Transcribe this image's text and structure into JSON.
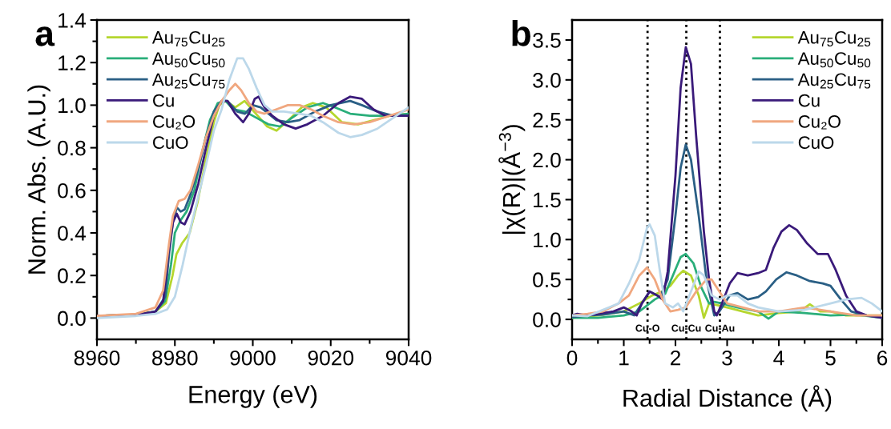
{
  "chart_data": [
    {
      "type": "line",
      "xlabel": "Energy (eV)",
      "ylabel": "Norm. Abs. (A.U.)",
      "annotations": [
        "a"
      ],
      "legend": "top left",
      "grid": false,
      "xlim": [
        8960,
        9040
      ],
      "xticks": [
        8960,
        {
          "value": 8970,
          "label": null
        },
        8980,
        {
          "value": 8990,
          "label": null
        },
        9000,
        {
          "value": 9010,
          "label": null
        },
        9020,
        {
          "value": 9030,
          "label": null
        },
        9040
      ],
      "ylim": [
        -0.1,
        1.4
      ],
      "yticks": [
        {
          "value": 0.0,
          "label": "0.0"
        },
        {
          "value": 0.1,
          "label": null
        },
        0.2,
        {
          "value": 0.3,
          "label": null
        },
        0.4,
        {
          "value": 0.5,
          "label": null
        },
        0.6,
        {
          "value": 0.7,
          "label": null
        },
        0.8,
        {
          "value": 0.9,
          "label": null
        },
        {
          "value": 1.0,
          "label": "1.0"
        },
        {
          "value": 1.1,
          "label": null
        },
        1.2,
        {
          "value": 1.3,
          "label": null
        },
        1.4
      ],
      "series": [
        {
          "name": "Au$_{75}$Cu$_{25}$",
          "color": "#b5d62e",
          "x": [
            8960,
            8969.5,
            8975,
            8977.7,
            8979.4,
            8980.4,
            8981.8,
            8983.8,
            8985.9,
            8988,
            8990,
            8991.4,
            8993.1,
            8995.5,
            8997.9,
            9000.3,
            9003.7,
            9006.1,
            9009.2,
            9012.6,
            9015.4,
            9018.8,
            9022.9,
            9027,
            9031.1,
            9035.2,
            9040
          ],
          "values": [
            0.01,
            0.015,
            0.03,
            0.07,
            0.2,
            0.3,
            0.35,
            0.4,
            0.55,
            0.75,
            0.92,
            1.0,
            1.02,
            0.99,
            1.02,
            0.97,
            0.9,
            0.88,
            0.93,
            0.99,
            1.01,
            0.99,
            0.92,
            0.91,
            0.93,
            0.95,
            0.96
          ]
        },
        {
          "name": "Au$_{50}$Cu$_{50}$",
          "color": "#2aae7a",
          "x": [
            8960,
            8970,
            8975,
            8977.5,
            8979,
            8980,
            8981.5,
            8983,
            8985,
            8987,
            8989,
            8991,
            8993,
            8995,
            8998,
            9001,
            9004,
            9007,
            9010,
            9014,
            9018,
            9021,
            9025,
            9030,
            9035,
            9040
          ],
          "values": [
            0.01,
            0.015,
            0.03,
            0.08,
            0.25,
            0.4,
            0.46,
            0.5,
            0.6,
            0.78,
            0.93,
            1.01,
            1.02,
            0.98,
            0.97,
            0.94,
            0.91,
            0.9,
            0.94,
            0.99,
            1.01,
            0.99,
            0.96,
            0.95,
            0.95,
            0.96
          ]
        },
        {
          "name": "Au$_{25}$Cu$_{75}$",
          "color": "#2a5f85",
          "x": [
            8960,
            8970,
            8975,
            8977.5,
            8978.5,
            8979.5,
            8980.5,
            8981.5,
            8982.5,
            8984,
            8986,
            8988,
            8990,
            8992,
            8993.5,
            8996,
            8998,
            9000,
            9002,
            9004,
            9006,
            9009,
            9012,
            9016,
            9020,
            9025,
            9028,
            9032,
            9036,
            9040
          ],
          "values": [
            0.01,
            0.015,
            0.03,
            0.1,
            0.3,
            0.45,
            0.52,
            0.5,
            0.51,
            0.58,
            0.7,
            0.85,
            0.97,
            1.02,
            1.02,
            0.97,
            0.96,
            1.0,
            0.99,
            0.96,
            0.93,
            0.92,
            0.93,
            0.97,
            1.0,
            1.02,
            1.0,
            0.97,
            0.95,
            0.95
          ]
        },
        {
          "name": "Cu",
          "color": "#3a1a7a",
          "x": [
            8960,
            8970,
            8975,
            8977,
            8978.3,
            8979.5,
            8980.5,
            8981.5,
            8982.5,
            8984,
            8986,
            8988,
            8990,
            8992,
            8993.5,
            8995.5,
            8997.5,
            8999,
            9000.5,
            9001.5,
            9003,
            9005,
            9008,
            9011,
            9014,
            9018,
            9022,
            9025,
            9028,
            9031,
            9034,
            9037,
            9040
          ],
          "values": [
            0.01,
            0.015,
            0.03,
            0.08,
            0.3,
            0.45,
            0.49,
            0.45,
            0.44,
            0.5,
            0.63,
            0.8,
            0.95,
            1.02,
            1.02,
            0.96,
            0.92,
            0.96,
            1.03,
            1.04,
            0.99,
            0.95,
            0.91,
            0.89,
            0.91,
            0.95,
            1.01,
            1.04,
            1.03,
            0.98,
            0.95,
            0.95,
            0.95
          ]
        },
        {
          "name": "Cu₂O",
          "color": "#f0a77f",
          "x": [
            8960,
            8970,
            8975,
            8977,
            8978.5,
            8979.5,
            8981,
            8982.5,
            8984,
            8986,
            8988,
            8990,
            8992,
            8994,
            8995.5,
            8997,
            8999,
            9001,
            9003,
            9006,
            9009,
            9012,
            9015,
            9018,
            9022,
            9026,
            9030,
            9035,
            9040
          ],
          "values": [
            0.01,
            0.02,
            0.05,
            0.13,
            0.35,
            0.48,
            0.55,
            0.56,
            0.6,
            0.72,
            0.85,
            0.95,
            1.02,
            1.07,
            1.1,
            1.07,
            1.01,
            0.97,
            0.96,
            0.98,
            1.0,
            1.0,
            0.98,
            0.95,
            0.92,
            0.91,
            0.92,
            0.95,
            0.98
          ]
        },
        {
          "name": "CuO",
          "color": "#bcd8ea",
          "x": [
            8960,
            8970,
            8975,
            8978,
            8980,
            8982,
            8984,
            8986,
            8988,
            8990,
            8992,
            8994,
            8996,
            8997.5,
            8999,
            9001,
            9003,
            9005,
            9008,
            9012,
            9015,
            9018,
            9022,
            9025,
            9028,
            9032,
            9036,
            9040
          ],
          "values": [
            0.0,
            0.01,
            0.02,
            0.04,
            0.1,
            0.25,
            0.42,
            0.57,
            0.72,
            0.88,
            0.98,
            1.12,
            1.22,
            1.22,
            1.17,
            1.08,
            1.0,
            0.97,
            0.97,
            0.96,
            0.95,
            0.92,
            0.87,
            0.85,
            0.86,
            0.89,
            0.94,
            0.99
          ]
        }
      ]
    },
    {
      "type": "line",
      "xlabel": "Radial Distance (Å)",
      "ylabel": "|χ(R)|(Å$^{−3}$)",
      "annotations": [
        "b"
      ],
      "legend": "top right",
      "grid": false,
      "xlim": [
        0,
        6
      ],
      "xticks": [
        0,
        {
          "value": 0.5,
          "label": null
        },
        1,
        {
          "value": 1.5,
          "label": null
        },
        2,
        {
          "value": 2.5,
          "label": null
        },
        3,
        {
          "value": 3.5,
          "label": null
        },
        4,
        {
          "value": 4.5,
          "label": null
        },
        5,
        {
          "value": 5.5,
          "label": null
        },
        6
      ],
      "ylim": [
        -0.25,
        3.75
      ],
      "yticks": [
        {
          "value": 0.0,
          "label": "0.0"
        },
        {
          "value": 0.25,
          "label": null
        },
        0.5,
        {
          "value": 0.75,
          "label": null
        },
        {
          "value": 1.0,
          "label": "1.0"
        },
        {
          "value": 1.25,
          "label": null
        },
        1.5,
        {
          "value": 1.75,
          "label": null
        },
        {
          "value": 2.0,
          "label": "2.0"
        },
        {
          "value": 2.25,
          "label": null
        },
        2.5,
        {
          "value": 2.75,
          "label": null
        },
        {
          "value": 3.0,
          "label": "3.0"
        },
        {
          "value": 3.25,
          "label": null
        },
        3.5
      ],
      "ref_lines": [
        {
          "axis": "x",
          "value": 1.46,
          "label": "Cu-O",
          "color": "#000000",
          "line_style": "dotted"
        },
        {
          "axis": "x",
          "value": 2.21,
          "label": "Cu-Cu",
          "color": "#000000",
          "line_style": "dotted"
        },
        {
          "axis": "x",
          "value": 2.86,
          "label": "Cu-Au",
          "color": "#000000",
          "line_style": "dotted"
        }
      ],
      "series": [
        {
          "name": "Au$_{75}$Cu$_{25}$",
          "color": "#b5d62e",
          "x": [
            0,
            0.5,
            1.0,
            1.3,
            1.55,
            1.75,
            1.9,
            2.05,
            2.15,
            2.3,
            2.45,
            2.55,
            2.65,
            2.8,
            3.0,
            3.3,
            3.6,
            4.0,
            4.4,
            4.6,
            4.8,
            5.0,
            5.3,
            6.0
          ],
          "values": [
            0.02,
            0.05,
            0.1,
            0.2,
            0.3,
            0.35,
            0.42,
            0.55,
            0.61,
            0.55,
            0.3,
            0.02,
            0.2,
            0.18,
            0.15,
            0.1,
            0.05,
            0.08,
            0.1,
            0.19,
            0.1,
            0.1,
            0.05,
            0.05
          ]
        },
        {
          "name": "Au$_{50}$Cu$_{50}$",
          "color": "#2aae7a",
          "x": [
            0,
            0.5,
            1.0,
            1.3,
            1.6,
            1.8,
            1.95,
            2.1,
            2.2,
            2.35,
            2.5,
            2.65,
            2.75,
            2.9,
            3.2,
            3.6,
            3.8,
            4.0,
            4.5,
            5.0,
            5.5,
            6.0
          ],
          "values": [
            0.02,
            0.02,
            0.05,
            0.1,
            0.25,
            0.32,
            0.55,
            0.78,
            0.82,
            0.7,
            0.4,
            0.2,
            0.22,
            0.2,
            0.15,
            0.1,
            0.01,
            0.1,
            0.08,
            0.05,
            0.06,
            0.02
          ]
        },
        {
          "name": "Au$_{25}$Cu$_{75}$",
          "color": "#2a5f85",
          "x": [
            0,
            0.3,
            0.6,
            1.0,
            1.2,
            1.35,
            1.5,
            1.7,
            1.85,
            2.0,
            2.1,
            2.2,
            2.3,
            2.45,
            2.6,
            2.75,
            2.85,
            3.05,
            3.2,
            3.4,
            3.6,
            3.75,
            3.95,
            4.15,
            4.35,
            4.6,
            4.85,
            5.0,
            5.2,
            5.4,
            5.7,
            6.0
          ],
          "values": [
            0.03,
            0.05,
            0.06,
            0.1,
            0.05,
            0.2,
            0.35,
            0.28,
            0.5,
            1.3,
            1.9,
            2.19,
            2.0,
            1.3,
            0.5,
            0.05,
            0.1,
            0.3,
            0.33,
            0.25,
            0.28,
            0.35,
            0.5,
            0.59,
            0.55,
            0.48,
            0.45,
            0.42,
            0.25,
            0.1,
            0.05,
            0.03
          ]
        },
        {
          "name": "Cu",
          "color": "#3a1a7a",
          "x": [
            0,
            0.1,
            0.3,
            0.6,
            0.8,
            1.0,
            1.15,
            1.25,
            1.35,
            1.5,
            1.65,
            1.75,
            1.85,
            2.0,
            2.1,
            2.2,
            2.3,
            2.4,
            2.55,
            2.65,
            2.75,
            2.8,
            2.9,
            3.05,
            3.2,
            3.4,
            3.6,
            3.75,
            3.9,
            4.05,
            4.2,
            4.35,
            4.55,
            4.75,
            4.95,
            5.1,
            5.3,
            5.5,
            5.7,
            6.0
          ],
          "values": [
            0.05,
            0.07,
            0.05,
            0.08,
            0.1,
            0.15,
            0.1,
            0.05,
            0.2,
            0.35,
            0.3,
            0.25,
            0.6,
            1.8,
            2.9,
            3.41,
            3.2,
            2.3,
            1.1,
            0.5,
            0.1,
            0.05,
            0.2,
            0.45,
            0.58,
            0.55,
            0.58,
            0.62,
            0.9,
            1.1,
            1.18,
            1.12,
            0.95,
            0.82,
            0.82,
            0.62,
            0.3,
            0.1,
            0.05,
            0.02
          ]
        },
        {
          "name": "Cu₂O",
          "color": "#f0a77f",
          "x": [
            0,
            0.3,
            0.6,
            0.9,
            1.1,
            1.3,
            1.45,
            1.6,
            1.75,
            1.9,
            2.05,
            2.2,
            2.4,
            2.6,
            2.7,
            2.85,
            3.0,
            3.3,
            3.6,
            4.0,
            4.5,
            5.0,
            5.5,
            6.0
          ],
          "values": [
            0.05,
            0.07,
            0.1,
            0.2,
            0.3,
            0.55,
            0.65,
            0.5,
            0.25,
            0.1,
            0.12,
            0.15,
            0.35,
            0.5,
            0.5,
            0.35,
            0.2,
            0.15,
            0.1,
            0.1,
            0.15,
            0.1,
            0.05,
            0.05
          ]
        },
        {
          "name": "CuO",
          "color": "#bcd8ea",
          "x": [
            0,
            0.3,
            0.6,
            0.9,
            1.1,
            1.3,
            1.45,
            1.5,
            1.6,
            1.7,
            1.8,
            1.95,
            2.05,
            2.15,
            2.3,
            2.45,
            2.55,
            2.7,
            2.85,
            3.0,
            3.2,
            3.4,
            3.6,
            4.0,
            4.5,
            5.0,
            5.3,
            5.6,
            5.8,
            6.0
          ],
          "values": [
            0.05,
            0.04,
            0.12,
            0.2,
            0.45,
            0.75,
            1.15,
            1.19,
            1.05,
            0.6,
            0.2,
            0.15,
            0.2,
            0.1,
            0.35,
            0.6,
            0.55,
            0.3,
            0.25,
            0.3,
            0.3,
            0.2,
            0.15,
            0.1,
            0.12,
            0.2,
            0.25,
            0.27,
            0.2,
            0.1
          ]
        }
      ]
    }
  ]
}
